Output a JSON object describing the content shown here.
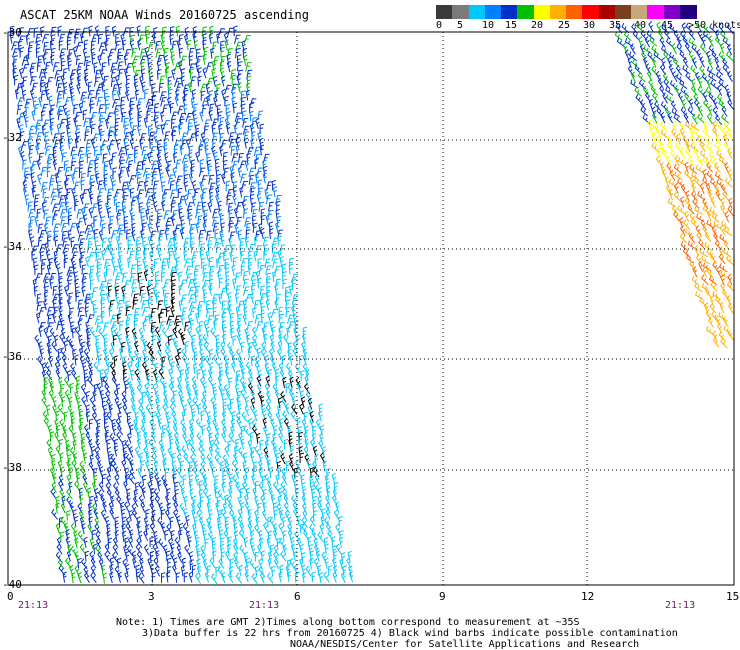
{
  "title": "ASCAT 25KM NOAA Winds 20160725 ascending",
  "colorbar": {
    "colors": [
      "#3a3a3a",
      "#7a7a7a",
      "#00c8ff",
      "#0080ff",
      "#0030c8",
      "#00c000",
      "#ffff00",
      "#ffb000",
      "#ff6000",
      "#ff0000",
      "#aa0000",
      "#7a4020",
      "#c8a878",
      "#ff00ff",
      "#8000c8",
      "#200080"
    ],
    "ticks": [
      "0",
      "5",
      "10",
      "15",
      "20",
      "25",
      "30",
      "35",
      "40",
      "45",
      ">50 knots"
    ]
  },
  "map": {
    "lon_labels": [
      "0",
      "3",
      "6",
      "9",
      "12",
      "15"
    ],
    "lat_labels": [
      "-30",
      "-32",
      "-34",
      "-36",
      "-38",
      "-40"
    ],
    "pass_times": [
      "21:13",
      "21:13",
      "21:13"
    ]
  },
  "notes": [
    "Note: 1) Times are GMT 2)Times along bottom correspond to measurement at ~35S",
    "3)Data buffer is 22 hrs from 20160725 4) Black wind barbs indicate possible contamination",
    "NOAA/NESDIS/Center for Satellite Applications and Research"
  ]
}
